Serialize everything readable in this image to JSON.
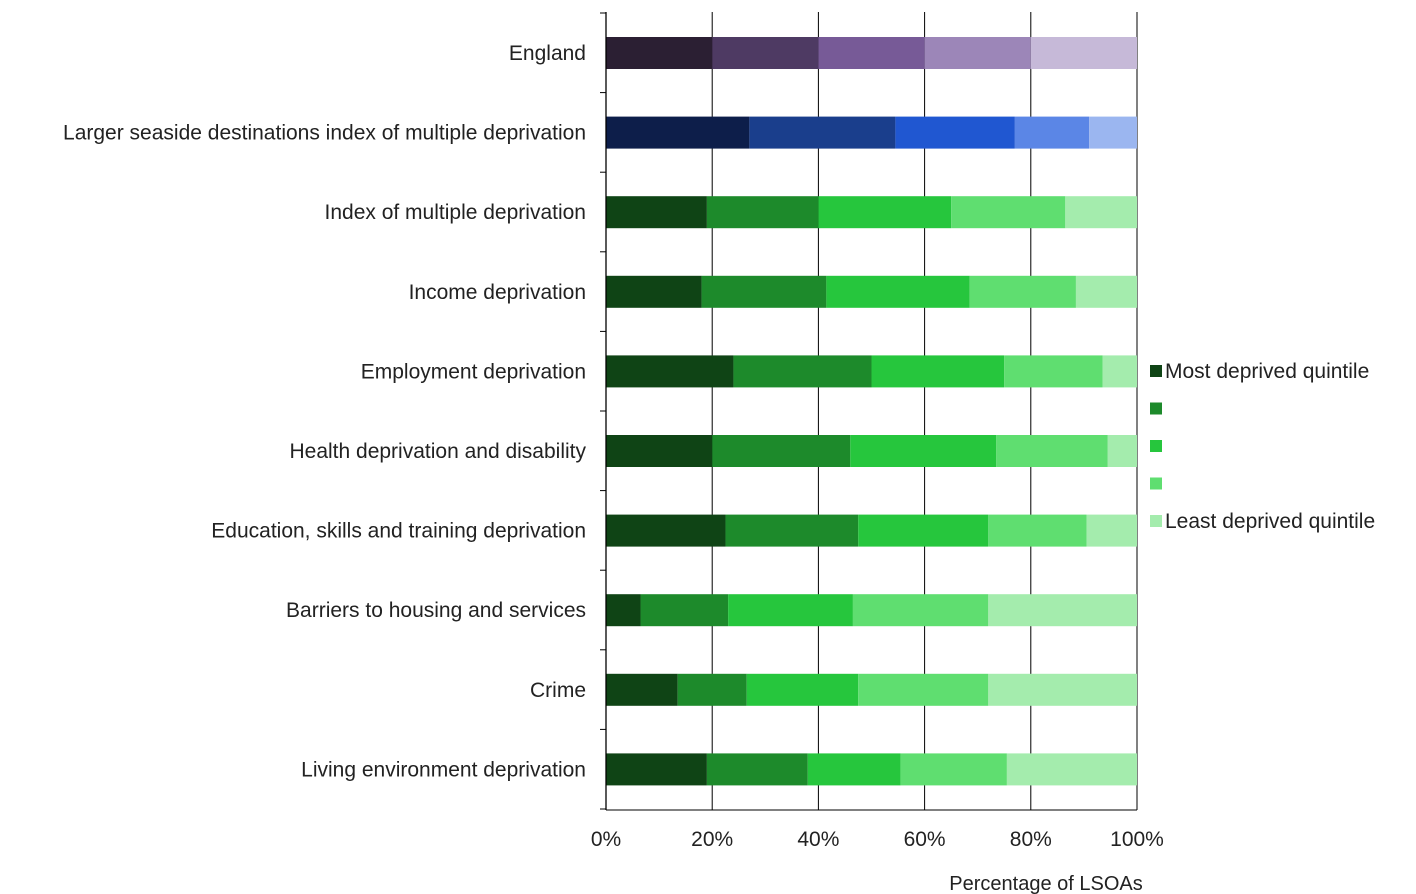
{
  "chart_data": {
    "type": "bar",
    "orientation": "horizontal",
    "stacked": true,
    "xlabel": "Percentage of LSOAs",
    "ylabel": "",
    "xlim": [
      0,
      100
    ],
    "x_ticks": [
      "0%",
      "20%",
      "40%",
      "60%",
      "80%",
      "100%"
    ],
    "grid": "vertical gridlines",
    "legend_position": "right",
    "categories": [
      "England",
      "Larger seaside destinations index of multiple deprivation",
      "Index of multiple deprivation",
      "Income deprivation",
      "Employment deprivation",
      "Health deprivation and disability",
      "Education, skills and training deprivation",
      "Barriers to housing and services",
      "Crime",
      "Living environment deprivation"
    ],
    "series": [
      {
        "name": "Most deprived quintile",
        "values": [
          20,
          27,
          19,
          18,
          24,
          20,
          22.5,
          6.5,
          13.5,
          19
        ]
      },
      {
        "name": "",
        "values": [
          20,
          27.5,
          21,
          23.5,
          26,
          26,
          25,
          16.5,
          13,
          19
        ]
      },
      {
        "name": "",
        "values": [
          20,
          22.5,
          25,
          27,
          25,
          27.5,
          24.5,
          23.5,
          21,
          17.5
        ]
      },
      {
        "name": "",
        "values": [
          20,
          14,
          21.5,
          20,
          18.5,
          21,
          18.5,
          25.5,
          24.5,
          20
        ]
      },
      {
        "name": "Least deprived quintile",
        "values": [
          20,
          9,
          13.5,
          11.5,
          6.5,
          5.5,
          9.5,
          28,
          28,
          24.5
        ]
      }
    ],
    "colors": {
      "England": [
        "#2b1f33",
        "#4e3a63",
        "#775a97",
        "#9c86b8",
        "#c6b9d8"
      ],
      "Larger seaside destinations index of multiple deprivation": [
        "#0d1e4a",
        "#1a3e8c",
        "#2057d1",
        "#5b86e6",
        "#9bb6f0"
      ],
      "default": [
        "#0f4415",
        "#1d8a2b",
        "#26c63d",
        "#5fde70",
        "#a4ecad"
      ]
    },
    "legend": [
      {
        "label": "Most deprived quintile",
        "color": "#0f4415"
      },
      {
        "label": "",
        "color": "#1d8a2b"
      },
      {
        "label": "",
        "color": "#26c63d"
      },
      {
        "label": "",
        "color": "#5fde70"
      },
      {
        "label": "Least deprived quintile",
        "color": "#a4ecad"
      }
    ]
  }
}
